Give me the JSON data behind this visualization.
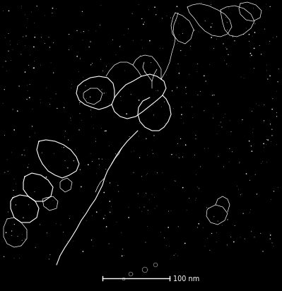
{
  "background_color": "#000000",
  "figure_width": 3.99,
  "figure_height": 4.12,
  "dpi": 100,
  "scale_bar_label": "100 nm",
  "scale_bar_color": "#ffffff",
  "text_color": "#ffffff",
  "text_fontsize": 7,
  "seed": 42,
  "num_noise_dots": 500,
  "main_structure_color": "#ffffff",
  "lw_thin": 0.5,
  "lw_med": 0.8,
  "lw_thick": 1.0
}
